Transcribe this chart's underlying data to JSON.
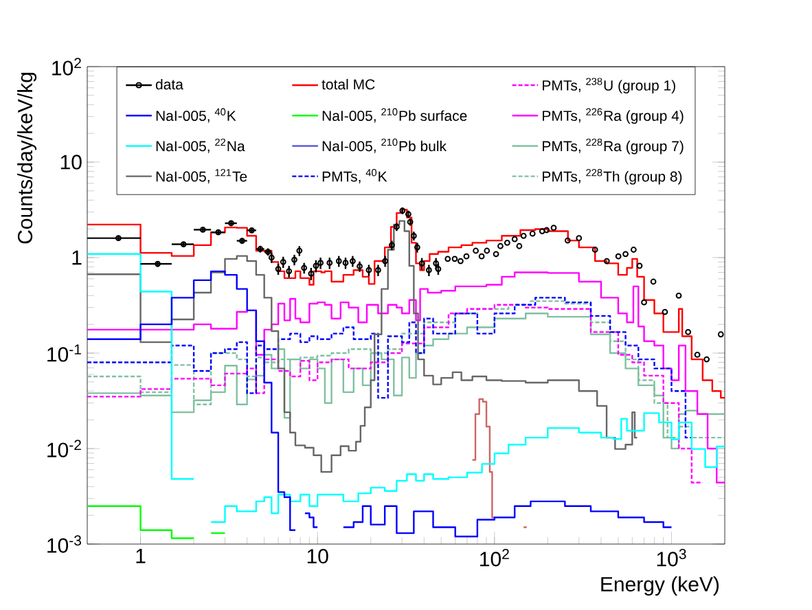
{
  "chart_data": {
    "type": "step",
    "xlabel": "Energy (keV)",
    "ylabel": "Counts/day/keV/kg",
    "log": "xy",
    "legend": "top",
    "xlim": [
      0.5,
      2000
    ],
    "ylim": [
      0.001,
      100
    ],
    "xticks": [
      1,
      10,
      {
        "value": 100,
        "label": "10$^{2}$"
      },
      {
        "value": 1000,
        "label": "10$^{3}$"
      }
    ],
    "yticks": [
      {
        "value": 0.001,
        "label": "10$^{-3}$"
      },
      {
        "value": 0.01,
        "label": "10$^{-2}$"
      },
      {
        "value": 0.1,
        "label": "10$^{-1}$"
      },
      1,
      10,
      {
        "value": 100,
        "label": "10$^{2}$"
      }
    ],
    "series": [
      {
        "name": "data",
        "type": "scatter",
        "marker": "circle",
        "color": "#000000",
        "x": [
          0.75,
          1.25,
          1.75,
          2.25,
          2.75,
          3.25,
          3.75,
          4.25,
          4.75,
          5.25,
          5.5,
          6.0,
          6.4,
          6.9,
          7.4,
          7.9,
          8.4,
          9.2,
          9.8,
          10.4,
          11.7,
          13.2,
          14.4,
          15.8,
          17.3,
          19.5,
          22,
          24.1,
          26.3,
          28,
          30.2,
          32.6,
          33.4,
          35,
          36.6,
          38.9,
          42.6,
          46.7,
          48.1,
          54.4,
          59.6,
          64.3,
          69.4,
          78.4,
          84.6,
          90.6,
          102,
          108,
          118,
          130,
          138,
          146,
          164,
          186,
          197,
          216,
          259,
          300,
          370,
          431,
          501,
          550,
          611,
          660,
          700,
          790,
          918,
          1099,
          1241,
          1400,
          1580,
          1900
        ],
        "values": [
          1.6,
          0.86,
          1.38,
          1.96,
          1.84,
          2.29,
          1.5,
          1.93,
          1.23,
          1.15,
          1.0,
          0.76,
          0.9,
          0.72,
          0.95,
          1.18,
          0.78,
          0.68,
          0.82,
          0.88,
          0.88,
          0.92,
          0.88,
          0.92,
          0.81,
          0.74,
          0.74,
          0.92,
          1.35,
          2.1,
          3.1,
          2.85,
          2.36,
          1.69,
          1.28,
          0.87,
          0.74,
          0.87,
          0.76,
          0.97,
          0.97,
          0.92,
          1.03,
          1.18,
          1.03,
          1.18,
          1.09,
          1.32,
          1.43,
          1.56,
          1.32,
          1.69,
          1.78,
          1.89,
          1.94,
          2.05,
          1.51,
          1.6,
          1.21,
          0.92,
          1.03,
          1.09,
          1.21,
          0.82,
          0.34,
          0.56,
          0.27,
          0.4,
          0.166,
          0.096,
          0.086,
          0.157
        ],
        "errors": [
          0.1,
          0.06,
          0.08,
          0.1,
          0.1,
          0.12,
          0.1,
          0.12,
          0.1,
          0.1,
          0.12,
          0.1,
          0.12,
          0.1,
          0.12,
          0.14,
          0.1,
          0.1,
          0.12,
          0.12,
          0.12,
          0.12,
          0.12,
          0.12,
          0.1,
          0.1,
          0.1,
          0.12,
          0.15,
          0.2,
          0.25,
          0.25,
          0.2,
          0.18,
          0.15,
          0.12,
          0.1,
          0.12,
          0.1,
          null,
          null,
          null,
          null,
          null,
          null,
          null,
          null,
          null,
          null,
          null,
          null,
          null,
          null,
          null,
          null,
          null,
          null,
          null,
          null,
          null,
          null,
          null,
          null,
          null,
          null,
          null,
          null,
          null,
          null,
          null,
          null,
          null
        ],
        "xerrors": [
          0.25,
          0.25,
          0.25,
          0.25,
          0.25,
          0.25,
          0.25,
          0.25,
          0.25,
          0.25,
          null,
          null,
          null,
          null,
          null,
          null,
          null,
          null,
          null,
          null,
          null,
          null,
          null,
          null,
          null,
          null,
          null,
          null,
          null,
          null,
          null,
          null,
          null,
          null,
          null,
          null,
          null,
          null,
          null,
          null,
          null,
          null,
          null,
          null,
          null,
          null,
          null,
          null,
          null,
          null,
          null,
          null,
          null,
          null,
          null,
          null,
          null,
          null,
          null,
          null,
          null,
          null,
          null,
          null,
          null,
          null,
          null,
          null,
          null,
          null,
          null,
          null
        ]
      },
      {
        "name": "NaI-005, $^{40}$K",
        "color": "#0000ff",
        "x": [
          0.5,
          1,
          1.5,
          2,
          2.5,
          3,
          3.5,
          4,
          4.5,
          5,
          5.5,
          6,
          6.5,
          7,
          7.5,
          8.5,
          9,
          9.5,
          10,
          14,
          16,
          18,
          20,
          24,
          28,
          35,
          45,
          60,
          80,
          100,
          130,
          160,
          200,
          250,
          350,
          500,
          700,
          900,
          1000
        ],
        "values": [
          0.14,
          0.2,
          0.38,
          0.58,
          0.72,
          0.66,
          0.47,
          0.28,
          0.133,
          0.049,
          0.0147,
          0.0035,
          0.0031,
          0.0014,
          null,
          0.0021,
          0.0019,
          0.0015,
          null,
          0.0015,
          0.0017,
          0.0025,
          0.0016,
          0.0025,
          0.0013,
          0.0022,
          0.0015,
          0.0012,
          0.0018,
          0.0019,
          0.0025,
          0.0028,
          0.0028,
          0.0025,
          0.0022,
          0.0019,
          0.0017,
          0.0015,
          0.0015
        ]
      },
      {
        "name": "NaI-005, $^{22}$Na",
        "color": "#00ffff",
        "x": [
          0.5,
          1,
          1.5,
          2,
          2.5,
          3,
          3.5,
          4,
          4.5,
          5,
          5.5,
          6,
          7,
          8,
          9,
          10,
          11,
          14,
          17,
          20,
          24,
          28,
          32,
          36,
          40,
          45,
          55,
          70,
          85,
          100,
          120,
          150,
          200,
          300,
          400,
          470,
          520,
          560,
          700,
          850,
          1000,
          1100,
          1300,
          1550,
          1800,
          2000
        ],
        "values": [
          1.09,
          0.44,
          0.0048,
          null,
          0.0017,
          0.0025,
          0.0022,
          0.0022,
          0.0028,
          0.0031,
          0.0021,
          0.0033,
          0.0028,
          0.0033,
          0.0025,
          0.0033,
          0.0033,
          0.0028,
          0.0034,
          0.0039,
          0.0036,
          0.0046,
          0.0054,
          0.0046,
          0.0054,
          0.0048,
          0.005,
          0.0056,
          0.0069,
          0.0089,
          0.011,
          0.013,
          0.0164,
          0.0147,
          0.013,
          0.0126,
          0.0205,
          0.0154,
          0.0235,
          0.0188,
          0.0125,
          0.0188,
          0.0099,
          0.0064,
          0.0105,
          0.0105
        ]
      },
      {
        "name": "NaI-005, $^{121}$Te",
        "color": "#666666",
        "x": [
          0.5,
          1,
          1.5,
          2,
          2.5,
          3,
          3.5,
          4,
          4.5,
          5,
          5.5,
          6,
          6.5,
          7,
          7.5,
          8.5,
          9.5,
          10.5,
          12,
          13.5,
          15,
          16.5,
          17.5,
          18.5,
          20,
          21,
          23,
          25,
          27,
          29,
          31,
          33,
          35,
          37,
          40,
          45,
          50,
          58,
          65,
          75,
          90,
          110,
          150,
          200,
          300,
          380,
          430,
          480,
          550,
          600,
          620,
          640
        ],
        "values": [
          0.67,
          0.13,
          0.225,
          0.43,
          0.7,
          0.97,
          1.04,
          0.92,
          0.66,
          0.38,
          0.17,
          0.069,
          0.024,
          0.0147,
          0.0108,
          0.0102,
          0.0085,
          0.0057,
          0.0085,
          0.0106,
          0.0095,
          0.0118,
          0.0173,
          0.027,
          0.052,
          0.157,
          0.47,
          1.21,
          2.22,
          2.42,
          1.89,
          0.82,
          0.26,
          0.086,
          0.058,
          0.047,
          0.055,
          0.063,
          0.052,
          0.057,
          0.052,
          0.051,
          0.049,
          0.052,
          0.04,
          0.028,
          0.013,
          0.0099,
          0.011,
          0.024,
          0.013,
          0.013
        ]
      },
      {
        "name": "total MC",
        "color": "#ff0000",
        "x": [
          0.5,
          1,
          1.5,
          2,
          2.5,
          3,
          3.5,
          4,
          4.5,
          5,
          5.5,
          6,
          6.5,
          7.5,
          8,
          9,
          9.5,
          10.5,
          11,
          12,
          14,
          16,
          18,
          19.5,
          21,
          24,
          26,
          28,
          30,
          32,
          34,
          36,
          38,
          40,
          43,
          48,
          55,
          65,
          75,
          90,
          110,
          140,
          170,
          200,
          216,
          260,
          300,
          370,
          430,
          500,
          560,
          600,
          640,
          700,
          800,
          900,
          1100,
          1150,
          1300,
          1500,
          1700,
          1900,
          2000
        ],
        "values": [
          2.22,
          1.12,
          1.04,
          1.35,
          1.84,
          2.07,
          2.05,
          1.69,
          1.18,
          1.18,
          0.9,
          0.72,
          0.61,
          0.72,
          0.61,
          0.52,
          0.72,
          0.7,
          0.72,
          0.56,
          0.66,
          0.74,
          0.63,
          0.53,
          0.92,
          1.28,
          2.1,
          2.93,
          3.18,
          2.63,
          1.43,
          0.87,
          0.74,
          0.92,
          1.09,
          1.15,
          1.28,
          1.35,
          1.43,
          1.51,
          1.69,
          1.94,
          1.99,
          1.89,
          1.89,
          1.51,
          1.28,
          0.92,
          0.87,
          0.66,
          0.78,
          0.97,
          0.63,
          0.36,
          0.26,
          0.166,
          0.29,
          0.15,
          0.086,
          0.052,
          0.04,
          0.034,
          0.034
        ]
      },
      {
        "name": "NaI-005, $^{210}$Pb surface",
        "color": "#00ff00",
        "x": [
          0.5,
          1,
          1.5,
          2,
          2.5,
          3
        ],
        "values": [
          0.0025,
          0.0014,
          0.00115,
          null,
          0.0013,
          0.0013
        ]
      },
      {
        "name": "NaI-005, $^{210}$Pb bulk",
        "color": "#5a5ae0"
      },
      {
        "name": "PMTs, $^{40}$K",
        "color": "#0000ff",
        "line_style": "dashed",
        "x": [
          0.5,
          1,
          1.5,
          2,
          2.5,
          3,
          3.5,
          4,
          4.5,
          5,
          6,
          7,
          8,
          9,
          10,
          12,
          14,
          16,
          20,
          22,
          25,
          30,
          33,
          36,
          40,
          45,
          60,
          80,
          100,
          130,
          170,
          200,
          250,
          350,
          450,
          550,
          650,
          800,
          1000,
          1200,
          1300
        ],
        "values": [
          0.08,
          0.08,
          0.12,
          0.065,
          0.1,
          0.11,
          0.13,
          0.038,
          0.12,
          0.11,
          0.14,
          0.16,
          0.13,
          0.15,
          0.14,
          0.16,
          0.186,
          0.14,
          0.16,
          0.034,
          0.15,
          0.13,
          0.21,
          0.1,
          0.23,
          0.16,
          0.26,
          0.16,
          0.26,
          0.32,
          0.38,
          0.38,
          0.34,
          0.245,
          0.166,
          0.12,
          0.086,
          0.069,
          0.04,
          0.013,
          0.013
        ]
      },
      {
        "name": "PMTs, $^{238}$U (group 1)",
        "color": "#ff00ff",
        "line_style": "dashed",
        "x": [
          0.5,
          1,
          1.5,
          2,
          2.5,
          3,
          3.5,
          4,
          4.5,
          5,
          6,
          7,
          8,
          9,
          10,
          12,
          15,
          20,
          25,
          30,
          40,
          55,
          70,
          100,
          150,
          200,
          250,
          350,
          500,
          600,
          700,
          900,
          1100,
          1300,
          1500
        ],
        "values": [
          0.035,
          0.042,
          0.054,
          0.054,
          0.046,
          0.061,
          0.061,
          0.069,
          0.038,
          0.086,
          0.065,
          0.057,
          0.083,
          0.052,
          0.08,
          0.086,
          0.069,
          0.08,
          0.1,
          0.126,
          0.186,
          0.26,
          0.29,
          0.32,
          0.3,
          0.29,
          0.29,
          0.166,
          0.096,
          0.08,
          0.058,
          0.03,
          0.01,
          0.0044,
          0.0044
        ]
      },
      {
        "name": "PMTs, $^{226}$Ra (group 4)",
        "color": "#ff00ff",
        "x": [
          0.5,
          1,
          1.5,
          2,
          2.5,
          3,
          3.5,
          4,
          4.5,
          5,
          5.5,
          6,
          6.5,
          7,
          7.5,
          8,
          9,
          10,
          11,
          12,
          13.5,
          15,
          17,
          19,
          22,
          25,
          28,
          30,
          33,
          36,
          38,
          42,
          50,
          60,
          75,
          90,
          110,
          130,
          160,
          200,
          300,
          400,
          500,
          560,
          609,
          650,
          700,
          800,
          900,
          1000,
          1100,
          1200,
          1400,
          1600,
          1800,
          2000
        ],
        "values": [
          0.176,
          0.176,
          0.176,
          0.2,
          0.18,
          0.18,
          0.27,
          0.28,
          0.096,
          0.176,
          0.2,
          0.33,
          0.22,
          0.37,
          0.23,
          0.21,
          0.33,
          0.34,
          0.32,
          0.23,
          0.34,
          0.3,
          0.21,
          0.32,
          0.26,
          0.32,
          0.3,
          0.26,
          0.36,
          0.22,
          0.47,
          0.43,
          0.45,
          0.5,
          0.5,
          0.52,
          0.63,
          0.7,
          0.7,
          0.69,
          0.56,
          0.38,
          0.26,
          0.21,
          0.5,
          0.19,
          0.133,
          0.12,
          0.069,
          0.052,
          0.12,
          0.04,
          0.023,
          0.01,
          0.0044,
          0.0044
        ]
      },
      {
        "name": "PMTs, $^{228}$Ra (group 7)",
        "color": "#80c0a0",
        "x": [
          0.5,
          1,
          1.5,
          2,
          2.5,
          3,
          3.5,
          4,
          4.5,
          5,
          5.5,
          6,
          6.5,
          7,
          8,
          9,
          10,
          11,
          12,
          14,
          16,
          18,
          20,
          23,
          27,
          30,
          33,
          36,
          40,
          45,
          55,
          70,
          100,
          150,
          200,
          250,
          350,
          450,
          550,
          650,
          800,
          900,
          1000,
          1100,
          1200,
          1400,
          1600,
          1800,
          2000
        ],
        "values": [
          0.038,
          0.036,
          0.024,
          0.032,
          0.039,
          0.074,
          0.029,
          0.053,
          0.058,
          0.096,
          0.069,
          0.11,
          0.021,
          0.086,
          0.069,
          0.086,
          0.069,
          0.03,
          0.086,
          0.039,
          0.069,
          0.046,
          0.1,
          0.086,
          0.036,
          0.09,
          0.055,
          0.1,
          0.12,
          0.14,
          0.16,
          0.186,
          0.23,
          0.26,
          0.24,
          0.24,
          0.157,
          0.1,
          0.069,
          0.046,
          0.036,
          0.013,
          0.01,
          0.023,
          0.025,
          0.023,
          0.023,
          0.023,
          0.023
        ]
      },
      {
        "name": "PMTs, $^{228}$Th (group 8)",
        "color": "#80c0a0",
        "line_style": "dashed",
        "x": [
          0.5,
          1,
          1.5,
          2,
          2.5,
          3,
          3.5,
          4,
          4.5,
          5,
          6,
          8,
          10,
          12,
          15,
          20,
          25,
          30,
          40,
          60,
          80,
          120,
          160,
          200,
          250,
          350,
          450,
          550,
          650,
          800,
          950,
          1100,
          1300,
          1600,
          2000
        ],
        "values": [
          0.057,
          0.039,
          0.075,
          0.029,
          0.1,
          0.1,
          0.086,
          0.057,
          0.09,
          0.08,
          0.086,
          0.09,
          0.094,
          0.1,
          0.11,
          0.1,
          0.11,
          0.16,
          0.21,
          0.26,
          0.29,
          0.32,
          0.35,
          0.35,
          0.33,
          0.21,
          0.133,
          0.086,
          0.052,
          0.03,
          0.013,
          0.017,
          0.013,
          0.013,
          0.013
        ]
      },
      {
        "color": "#cc6666",
        "x": [
          75,
          78,
          82,
          86,
          90,
          94,
          97,
          100,
          146,
          152
        ],
        "values": [
          0.0076,
          0.023,
          0.033,
          0.031,
          0.017,
          0.0057,
          0.0019,
          null,
          0.0015,
          0.0015
        ]
      }
    ]
  }
}
